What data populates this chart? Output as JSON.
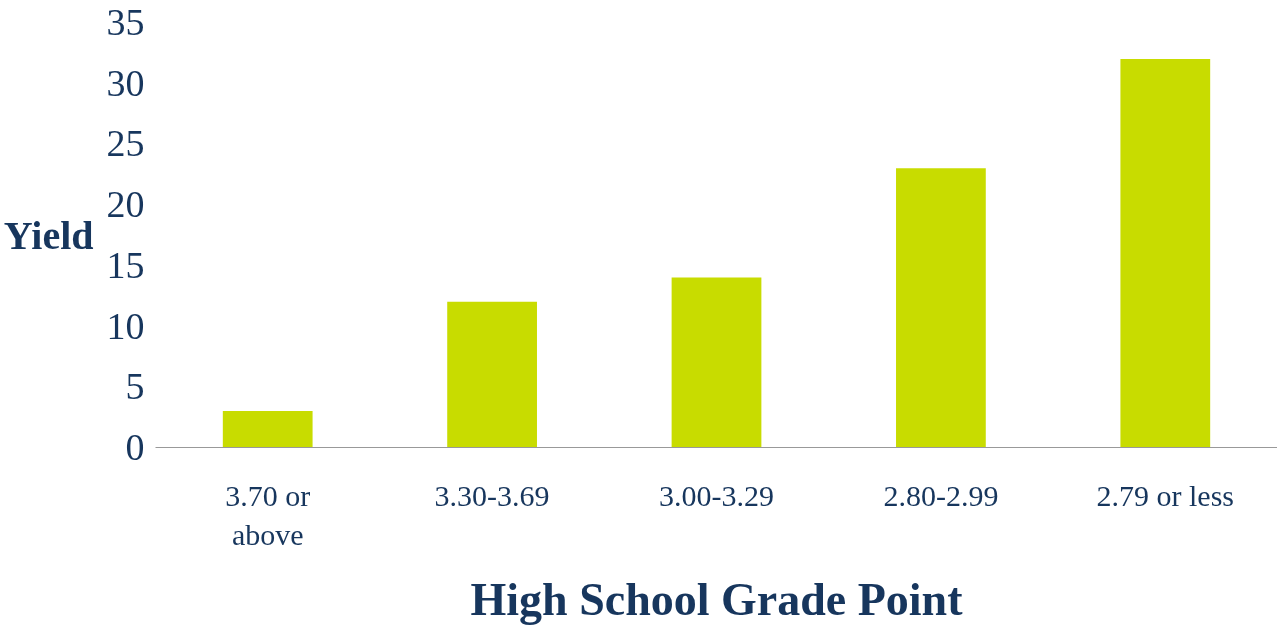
{
  "chart_data": {
    "type": "bar",
    "xlabel": "High School Grade Point",
    "ylabel": "Yield",
    "categories": [
      "3.70 or above",
      "3.30-3.69",
      "3.00-3.29",
      "2.80-2.99",
      "2.79 or less"
    ],
    "values": [
      3,
      12,
      14,
      23,
      32
    ],
    "color": "#c8dc00",
    "ylim": [
      0,
      35
    ],
    "yticks": [
      0,
      5,
      10,
      15,
      20,
      25,
      30,
      35
    ],
    "grid": false
  }
}
